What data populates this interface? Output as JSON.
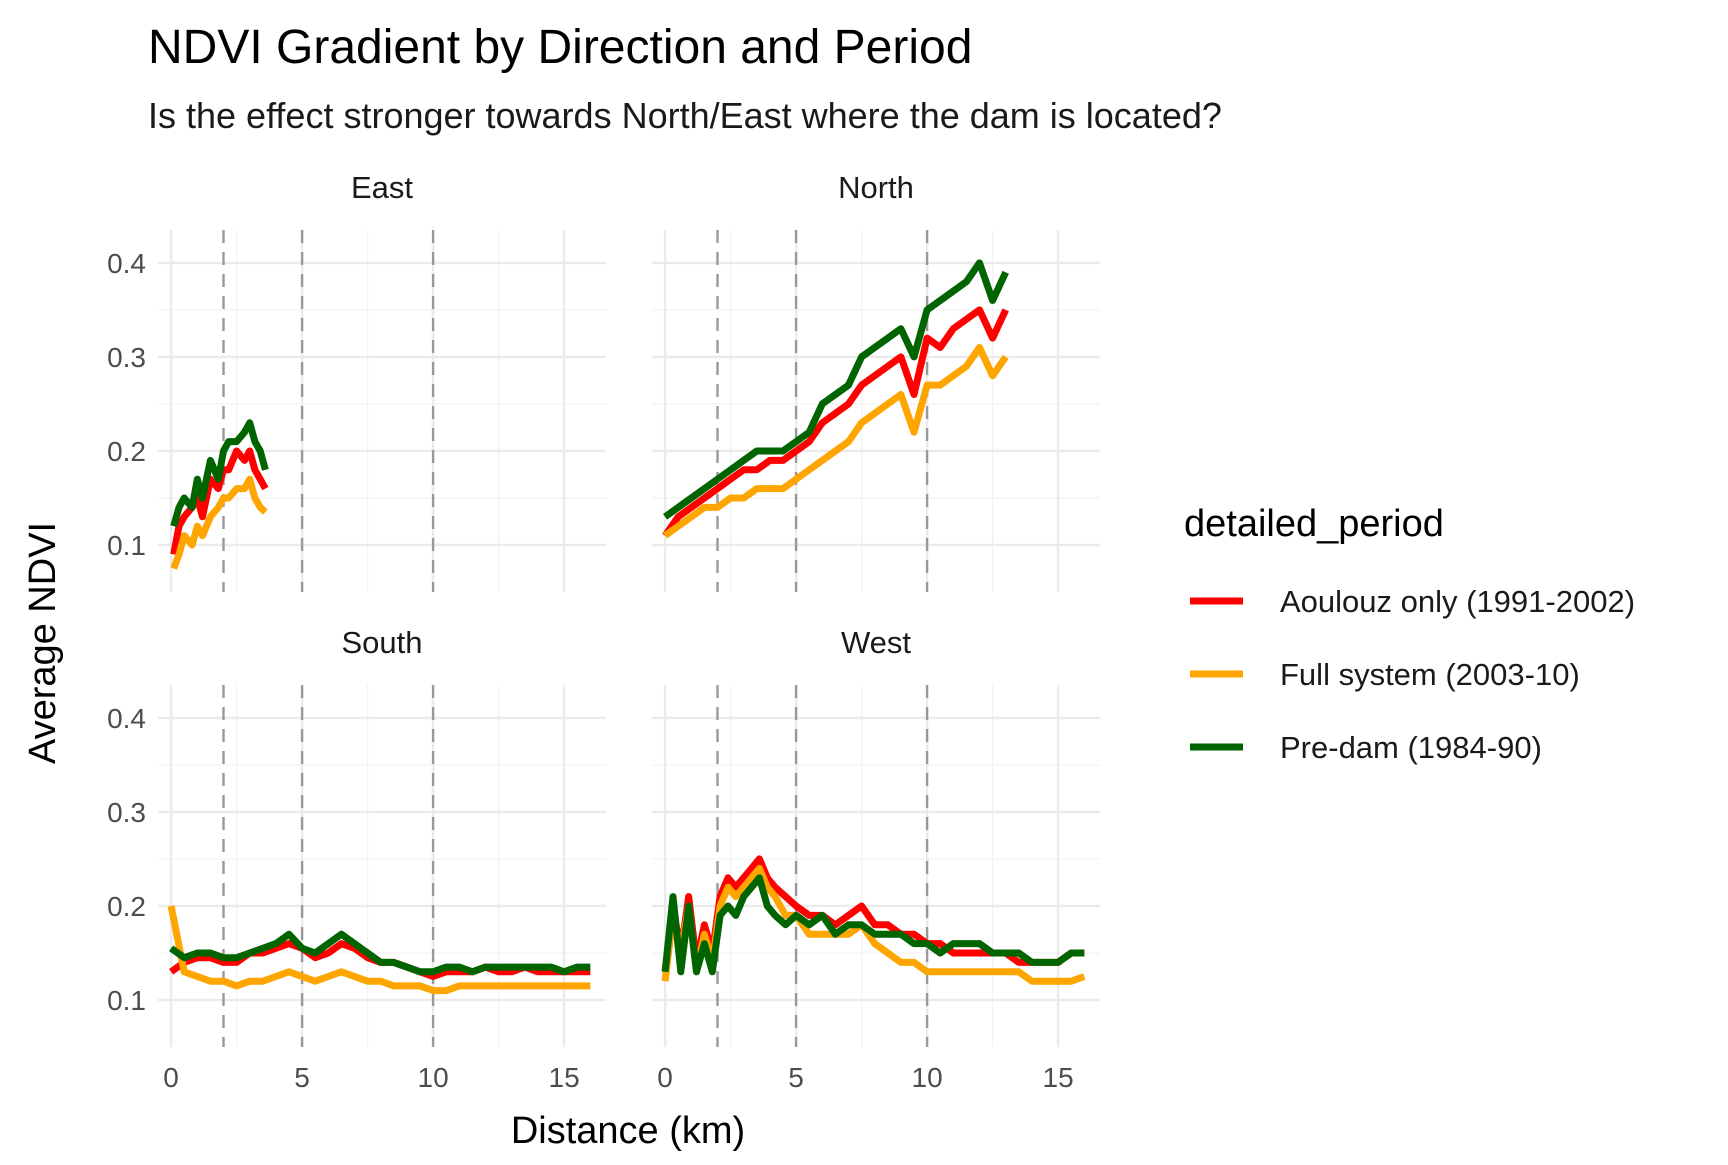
{
  "chart_data": {
    "type": "line",
    "title": "NDVI Gradient by Direction and Period",
    "subtitle": "Is the effect stronger towards North/East where the dam is located?",
    "xlabel": "Distance (km)",
    "ylabel": "Average NDVI",
    "xlim": [
      -0.5,
      16.6
    ],
    "ylim": [
      0.05,
      0.435
    ],
    "x_ticks": [
      "0",
      "5",
      "10",
      "15"
    ],
    "y_ticks": [
      "0.1",
      "0.2",
      "0.3",
      "0.4"
    ],
    "reference_lines_x": [
      2,
      5,
      10
    ],
    "reference_line_style": "dashed",
    "grid": true,
    "legend": {
      "title": "detailed_period",
      "position": "right",
      "entries": [
        {
          "label": "Aoulouz only (1991-2002)",
          "color": "#FF0000"
        },
        {
          "label": "Full system (2003-10)",
          "color": "#FFA500"
        },
        {
          "label": "Pre-dam (1984-90)",
          "color": "#006400"
        }
      ]
    },
    "facets": [
      {
        "label": "East",
        "series": [
          {
            "name": "Aoulouz only (1991-2002)",
            "x": [
              0.1,
              0.3,
              0.5,
              0.8,
              1.0,
              1.2,
              1.5,
              1.8,
              2.0,
              2.2,
              2.5,
              2.8,
              3.0,
              3.2,
              3.4,
              3.6
            ],
            "y": [
              0.09,
              0.12,
              0.13,
              0.14,
              0.15,
              0.13,
              0.17,
              0.16,
              0.18,
              0.18,
              0.2,
              0.19,
              0.2,
              0.18,
              0.17,
              0.16
            ]
          },
          {
            "name": "Full system (2003-10)",
            "x": [
              0.1,
              0.3,
              0.5,
              0.8,
              1.0,
              1.2,
              1.5,
              1.8,
              2.0,
              2.2,
              2.5,
              2.8,
              3.0,
              3.2,
              3.4,
              3.6
            ],
            "y": [
              0.075,
              0.09,
              0.11,
              0.1,
              0.12,
              0.11,
              0.13,
              0.14,
              0.15,
              0.15,
              0.16,
              0.16,
              0.17,
              0.15,
              0.14,
              0.135
            ]
          },
          {
            "name": "Pre-dam (1984-90)",
            "x": [
              0.1,
              0.3,
              0.5,
              0.8,
              1.0,
              1.2,
              1.5,
              1.8,
              2.0,
              2.2,
              2.5,
              2.8,
              3.0,
              3.2,
              3.4,
              3.6
            ],
            "y": [
              0.12,
              0.14,
              0.15,
              0.14,
              0.17,
              0.15,
              0.19,
              0.17,
              0.2,
              0.21,
              0.21,
              0.22,
              0.23,
              0.21,
              0.2,
              0.18
            ]
          }
        ]
      },
      {
        "label": "North",
        "series": [
          {
            "name": "Aoulouz only (1991-2002)",
            "x": [
              0,
              0.5,
              1,
              1.5,
              2,
              2.5,
              3,
              3.5,
              4,
              4.5,
              5,
              5.5,
              6,
              6.5,
              7,
              7.5,
              8,
              8.5,
              9,
              9.5,
              10,
              10.5,
              11,
              11.5,
              12,
              12.5,
              13
            ],
            "y": [
              0.11,
              0.13,
              0.14,
              0.15,
              0.16,
              0.17,
              0.18,
              0.18,
              0.19,
              0.19,
              0.2,
              0.21,
              0.23,
              0.24,
              0.25,
              0.27,
              0.28,
              0.29,
              0.3,
              0.26,
              0.32,
              0.31,
              0.33,
              0.34,
              0.35,
              0.32,
              0.35
            ]
          },
          {
            "name": "Full system (2003-10)",
            "x": [
              0,
              0.5,
              1,
              1.5,
              2,
              2.5,
              3,
              3.5,
              4,
              4.5,
              5,
              5.5,
              6,
              6.5,
              7,
              7.5,
              8,
              8.5,
              9,
              9.5,
              10,
              10.5,
              11,
              11.5,
              12,
              12.5,
              13
            ],
            "y": [
              0.11,
              0.12,
              0.13,
              0.14,
              0.14,
              0.15,
              0.15,
              0.16,
              0.16,
              0.16,
              0.17,
              0.18,
              0.19,
              0.2,
              0.21,
              0.23,
              0.24,
              0.25,
              0.26,
              0.22,
              0.27,
              0.27,
              0.28,
              0.29,
              0.31,
              0.28,
              0.3
            ]
          },
          {
            "name": "Pre-dam (1984-90)",
            "x": [
              0,
              0.5,
              1,
              1.5,
              2,
              2.5,
              3,
              3.5,
              4,
              4.5,
              5,
              5.5,
              6,
              6.5,
              7,
              7.5,
              8,
              8.5,
              9,
              9.5,
              10,
              10.5,
              11,
              11.5,
              12,
              12.5,
              13
            ],
            "y": [
              0.13,
              0.14,
              0.15,
              0.16,
              0.17,
              0.18,
              0.19,
              0.2,
              0.2,
              0.2,
              0.21,
              0.22,
              0.25,
              0.26,
              0.27,
              0.3,
              0.31,
              0.32,
              0.33,
              0.3,
              0.35,
              0.36,
              0.37,
              0.38,
              0.4,
              0.36,
              0.39
            ]
          }
        ]
      },
      {
        "label": "South",
        "series": [
          {
            "name": "Aoulouz only (1991-2002)",
            "x": [
              0,
              0.5,
              1,
              1.5,
              2,
              2.5,
              3,
              3.5,
              4,
              4.5,
              5,
              5.5,
              6,
              6.5,
              7,
              7.5,
              8,
              8.5,
              9,
              9.5,
              10,
              10.5,
              11,
              11.5,
              12,
              12.5,
              13,
              13.5,
              14,
              14.5,
              15,
              15.5,
              16
            ],
            "y": [
              0.13,
              0.14,
              0.145,
              0.145,
              0.14,
              0.14,
              0.15,
              0.15,
              0.155,
              0.16,
              0.155,
              0.145,
              0.15,
              0.16,
              0.155,
              0.145,
              0.14,
              0.14,
              0.135,
              0.13,
              0.125,
              0.13,
              0.13,
              0.13,
              0.135,
              0.13,
              0.13,
              0.135,
              0.13,
              0.13,
              0.13,
              0.13,
              0.13
            ]
          },
          {
            "name": "Full system (2003-10)",
            "x": [
              0,
              0.5,
              1,
              1.5,
              2,
              2.5,
              3,
              3.5,
              4,
              4.5,
              5,
              5.5,
              6,
              6.5,
              7,
              7.5,
              8,
              8.5,
              9,
              9.5,
              10,
              10.5,
              11,
              11.5,
              12,
              12.5,
              13,
              13.5,
              14,
              14.5,
              15,
              15.5,
              16
            ],
            "y": [
              0.2,
              0.13,
              0.125,
              0.12,
              0.12,
              0.115,
              0.12,
              0.12,
              0.125,
              0.13,
              0.125,
              0.12,
              0.125,
              0.13,
              0.125,
              0.12,
              0.12,
              0.115,
              0.115,
              0.115,
              0.11,
              0.11,
              0.115,
              0.115,
              0.115,
              0.115,
              0.115,
              0.115,
              0.115,
              0.115,
              0.115,
              0.115,
              0.115
            ]
          },
          {
            "name": "Pre-dam (1984-90)",
            "x": [
              0,
              0.5,
              1,
              1.5,
              2,
              2.5,
              3,
              3.5,
              4,
              4.5,
              5,
              5.5,
              6,
              6.5,
              7,
              7.5,
              8,
              8.5,
              9,
              9.5,
              10,
              10.5,
              11,
              11.5,
              12,
              12.5,
              13,
              13.5,
              14,
              14.5,
              15,
              15.5,
              16
            ],
            "y": [
              0.155,
              0.145,
              0.15,
              0.15,
              0.145,
              0.145,
              0.15,
              0.155,
              0.16,
              0.17,
              0.155,
              0.15,
              0.16,
              0.17,
              0.16,
              0.15,
              0.14,
              0.14,
              0.135,
              0.13,
              0.13,
              0.135,
              0.135,
              0.13,
              0.135,
              0.135,
              0.135,
              0.135,
              0.135,
              0.135,
              0.13,
              0.135,
              0.135
            ]
          }
        ]
      },
      {
        "label": "West",
        "series": [
          {
            "name": "Aoulouz only (1991-2002)",
            "x": [
              0,
              0.3,
              0.6,
              0.9,
              1.2,
              1.5,
              1.8,
              2.1,
              2.4,
              2.7,
              3,
              3.3,
              3.6,
              3.9,
              4.2,
              4.6,
              5,
              5.5,
              6,
              6.5,
              7,
              7.5,
              8,
              8.5,
              9,
              9.5,
              10,
              10.5,
              11,
              11.5,
              12,
              12.5,
              13,
              13.5,
              14,
              14.5,
              15,
              15.5,
              16
            ],
            "y": [
              0.13,
              0.2,
              0.15,
              0.21,
              0.14,
              0.18,
              0.15,
              0.21,
              0.23,
              0.22,
              0.23,
              0.24,
              0.25,
              0.23,
              0.22,
              0.21,
              0.2,
              0.19,
              0.19,
              0.18,
              0.19,
              0.2,
              0.18,
              0.18,
              0.17,
              0.17,
              0.16,
              0.16,
              0.15,
              0.15,
              0.15,
              0.15,
              0.15,
              0.14,
              0.14,
              0.14,
              0.14,
              0.15,
              0.15
            ]
          },
          {
            "name": "Full system (2003-10)",
            "x": [
              0,
              0.3,
              0.6,
              0.9,
              1.2,
              1.5,
              1.8,
              2.1,
              2.4,
              2.7,
              3,
              3.3,
              3.6,
              3.9,
              4.2,
              4.6,
              5,
              5.5,
              6,
              6.5,
              7,
              7.5,
              8,
              8.5,
              9,
              9.5,
              10,
              10.5,
              11,
              11.5,
              12,
              12.5,
              13,
              13.5,
              14,
              14.5,
              15,
              15.5,
              16
            ],
            "y": [
              0.12,
              0.19,
              0.15,
              0.2,
              0.13,
              0.17,
              0.14,
              0.2,
              0.22,
              0.21,
              0.22,
              0.23,
              0.24,
              0.22,
              0.21,
              0.19,
              0.19,
              0.17,
              0.17,
              0.17,
              0.17,
              0.18,
              0.16,
              0.15,
              0.14,
              0.14,
              0.13,
              0.13,
              0.13,
              0.13,
              0.13,
              0.13,
              0.13,
              0.13,
              0.12,
              0.12,
              0.12,
              0.12,
              0.125
            ]
          },
          {
            "name": "Pre-dam (1984-90)",
            "x": [
              0,
              0.3,
              0.6,
              0.9,
              1.2,
              1.5,
              1.8,
              2.1,
              2.4,
              2.7,
              3,
              3.3,
              3.6,
              3.9,
              4.2,
              4.6,
              5,
              5.5,
              6,
              6.5,
              7,
              7.5,
              8,
              8.5,
              9,
              9.5,
              10,
              10.5,
              11,
              11.5,
              12,
              12.5,
              13,
              13.5,
              14,
              14.5,
              15,
              15.5,
              16
            ],
            "y": [
              0.13,
              0.21,
              0.13,
              0.2,
              0.13,
              0.16,
              0.13,
              0.19,
              0.2,
              0.19,
              0.21,
              0.22,
              0.23,
              0.2,
              0.19,
              0.18,
              0.19,
              0.18,
              0.19,
              0.17,
              0.18,
              0.18,
              0.17,
              0.17,
              0.17,
              0.16,
              0.16,
              0.15,
              0.16,
              0.16,
              0.16,
              0.15,
              0.15,
              0.15,
              0.14,
              0.14,
              0.14,
              0.15,
              0.15
            ]
          }
        ]
      }
    ]
  }
}
